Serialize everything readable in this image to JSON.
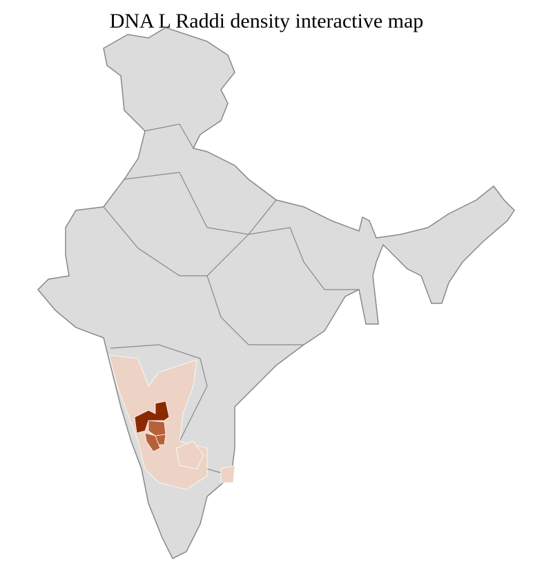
{
  "title": "DNA L Raddi density interactive map",
  "colors": {
    "no_data": "#dcdcdc",
    "border": "#888888",
    "district_border": "#ffffff",
    "low": "#ecd3c6",
    "medium": "#b8603a",
    "high": "#8b2a00"
  }
}
